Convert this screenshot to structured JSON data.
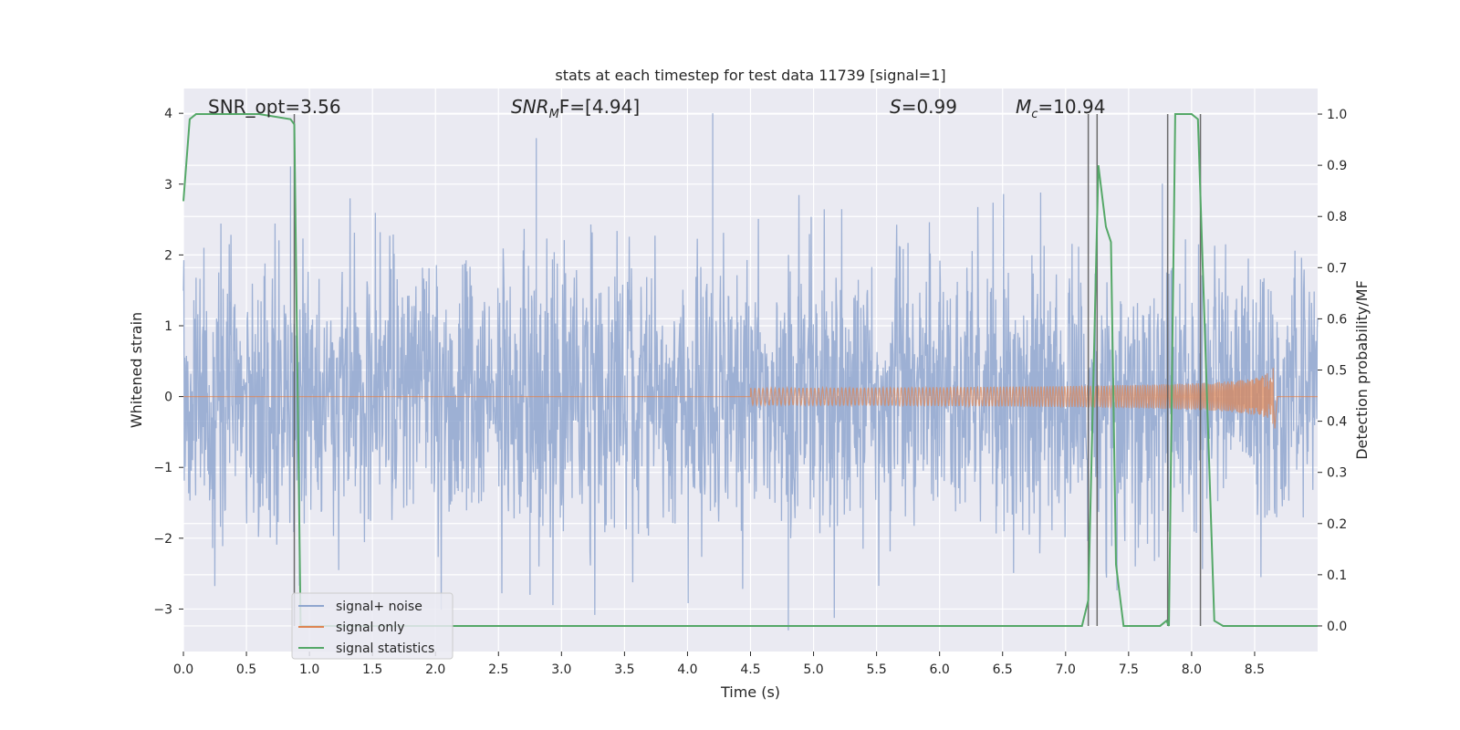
{
  "chart_data": {
    "type": "line",
    "title": "stats at each timestep for test data 11739 [signal=1]",
    "xlabel": "Time (s)",
    "ylabel": "Whitened strain",
    "ylabel_right": "Detection probability/MF",
    "xlim": [
      0.0,
      9.0
    ],
    "ylim": [
      -3.6,
      4.35
    ],
    "ylim_right": [
      -0.05,
      1.05
    ],
    "grid": true,
    "legend_position": "lower-left",
    "xticks": [
      "0.0",
      "0.5",
      "1.0",
      "1.5",
      "2.0",
      "2.5",
      "3.0",
      "3.5",
      "4.0",
      "4.5",
      "5.0",
      "5.5",
      "6.0",
      "6.5",
      "7.0",
      "7.5",
      "8.0",
      "8.5"
    ],
    "yticks_left": [
      "−3",
      "−2",
      "−1",
      "0",
      "1",
      "2",
      "3",
      "4"
    ],
    "yticks_right": [
      "0.0",
      "0.1",
      "0.2",
      "0.3",
      "0.4",
      "0.5",
      "0.6",
      "0.7",
      "0.8",
      "0.9",
      "1.0"
    ],
    "annotations": {
      "snr_opt": "SNR_opt=3.56",
      "snr_mf_main": "SNR",
      "snr_mf_sub": "M",
      "snr_mf_tail": "F=[4.94]",
      "s_main": "S",
      "s_tail": "=0.99",
      "mc_main": "M",
      "mc_sub": "c",
      "mc_tail": "=10.94"
    },
    "series": [
      {
        "name": "signal+ noise",
        "axis": "left",
        "color": "#8fa6cf",
        "description": "dense whitened noise, approx. ±1 with spikes to ±3; max near x=4.2 (y≈4.0), min near x=4.8 (y≈−3.3)"
      },
      {
        "name": "signal only",
        "axis": "left",
        "color": "#dd8452",
        "chirp": {
          "start": 4.5,
          "peak_time": 8.65,
          "peak_amplitude": 0.5,
          "end": 9.0
        }
      },
      {
        "name": "signal statistics",
        "axis": "right",
        "color": "#55a868",
        "x": [
          0.0,
          0.05,
          0.1,
          0.3,
          0.6,
          0.85,
          0.88,
          0.93,
          1.0,
          7.0,
          7.13,
          7.18,
          7.26,
          7.32,
          7.36,
          7.4,
          7.46,
          7.75,
          7.8,
          7.82,
          7.87,
          7.92,
          8.0,
          8.05,
          8.18,
          8.25,
          9.0
        ],
        "y": [
          0.83,
          0.99,
          1.0,
          1.0,
          1.0,
          0.99,
          0.98,
          0.0,
          0.0,
          0.0,
          0.0,
          0.05,
          0.9,
          0.78,
          0.75,
          0.12,
          0.0,
          0.0,
          0.01,
          0.0,
          1.0,
          1.0,
          1.0,
          0.99,
          0.01,
          0.0,
          0.0
        ]
      }
    ],
    "vertical_markers": [
      0.88,
      7.18,
      7.25,
      7.81,
      8.07
    ],
    "legend": [
      "signal+ noise",
      "signal only",
      "signal statistics"
    ],
    "colors": {
      "background": "#eaeaf2",
      "grid": "#ffffff",
      "marker": "#555555"
    }
  }
}
